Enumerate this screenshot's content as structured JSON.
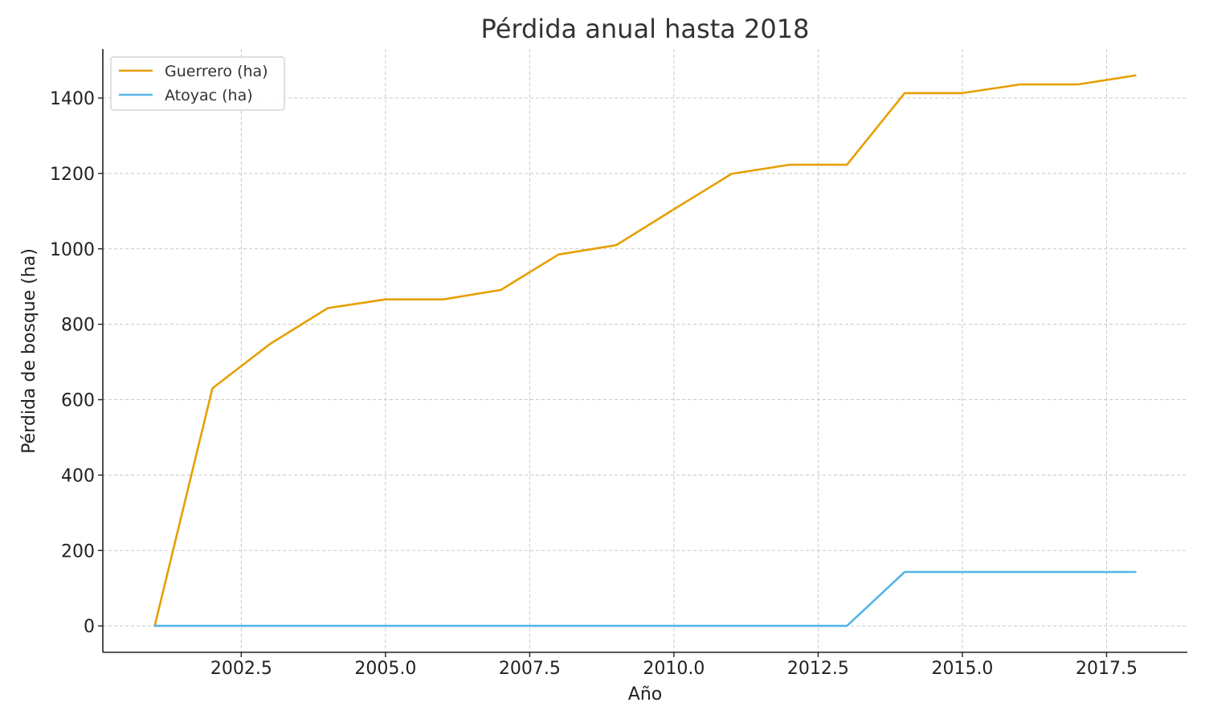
{
  "chart_data": {
    "type": "line",
    "title": "Pérdida anual hasta 2018",
    "xlabel": "Año",
    "ylabel": "Pérdida de bosque (ha)",
    "x": [
      2001,
      2002,
      2003,
      2004,
      2005,
      2006,
      2007,
      2008,
      2009,
      2010,
      2011,
      2012,
      2013,
      2014,
      2015,
      2016,
      2017,
      2018
    ],
    "xlim": [
      2000.1,
      2018.9
    ],
    "ylim": [
      -70,
      1530
    ],
    "xticks": [
      2002.5,
      2005.0,
      2007.5,
      2010.0,
      2012.5,
      2015.0,
      2017.5
    ],
    "xtick_labels": [
      "2002.5",
      "2005.0",
      "2007.5",
      "2010.0",
      "2012.5",
      "2015.0",
      "2017.5"
    ],
    "yticks": [
      0,
      200,
      400,
      600,
      800,
      1000,
      1200,
      1400
    ],
    "ytick_labels": [
      "0",
      "200",
      "400",
      "600",
      "800",
      "1000",
      "1200",
      "1400"
    ],
    "grid": true,
    "legend_position": "top-left",
    "series": [
      {
        "name": "Guerrero (ha)",
        "color": "#E69F00",
        "values": [
          0,
          630,
          748,
          843,
          866,
          866,
          891,
          985,
          1010,
          1105,
          1199,
          1223,
          1223,
          1413,
          1413,
          1436,
          1436,
          1460
        ]
      },
      {
        "name": "Atoyac (ha)",
        "color": "#56B4E9",
        "values": [
          0,
          0,
          0,
          0,
          0,
          0,
          0,
          0,
          0,
          0,
          0,
          0,
          0,
          143,
          143,
          143,
          143,
          143
        ]
      }
    ]
  }
}
